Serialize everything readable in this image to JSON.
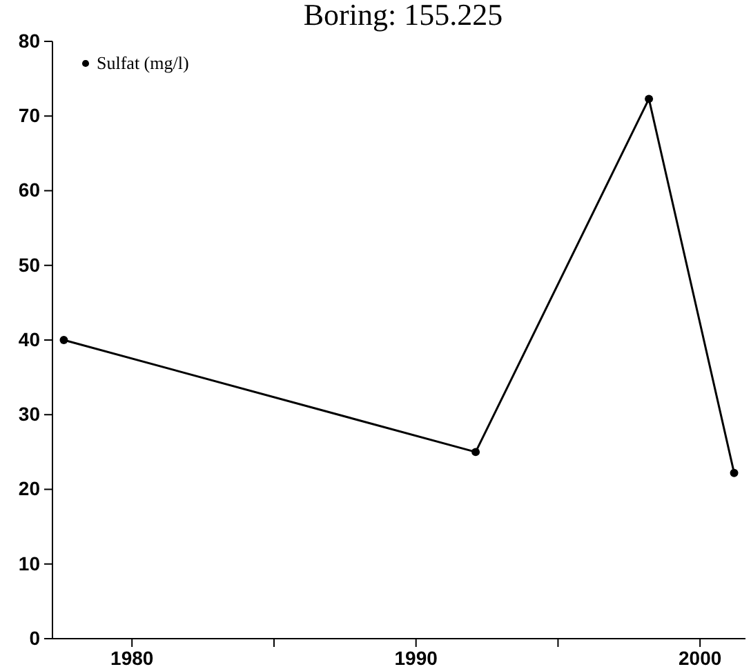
{
  "chart_data": {
    "type": "line",
    "title": "Boring: 155.225",
    "x": [
      1977.6,
      1992.1,
      1998.2,
      2001.2
    ],
    "series": [
      {
        "name": "Sulfat (mg/l)",
        "color": "#000000",
        "values": [
          40,
          25,
          72.3,
          22.2
        ]
      }
    ],
    "xlim": [
      1977.2,
      2001.6
    ],
    "xticks": [
      1980,
      {
        "value": 1985,
        "label": null
      },
      1990,
      {
        "value": 1995,
        "label": null
      },
      2000
    ],
    "ylim": [
      0,
      80
    ],
    "yticks": [
      0,
      10,
      20,
      30,
      40,
      50,
      60,
      70,
      80
    ],
    "grid": false,
    "legend": "top left",
    "marker": "circle",
    "line_style": "solid"
  }
}
